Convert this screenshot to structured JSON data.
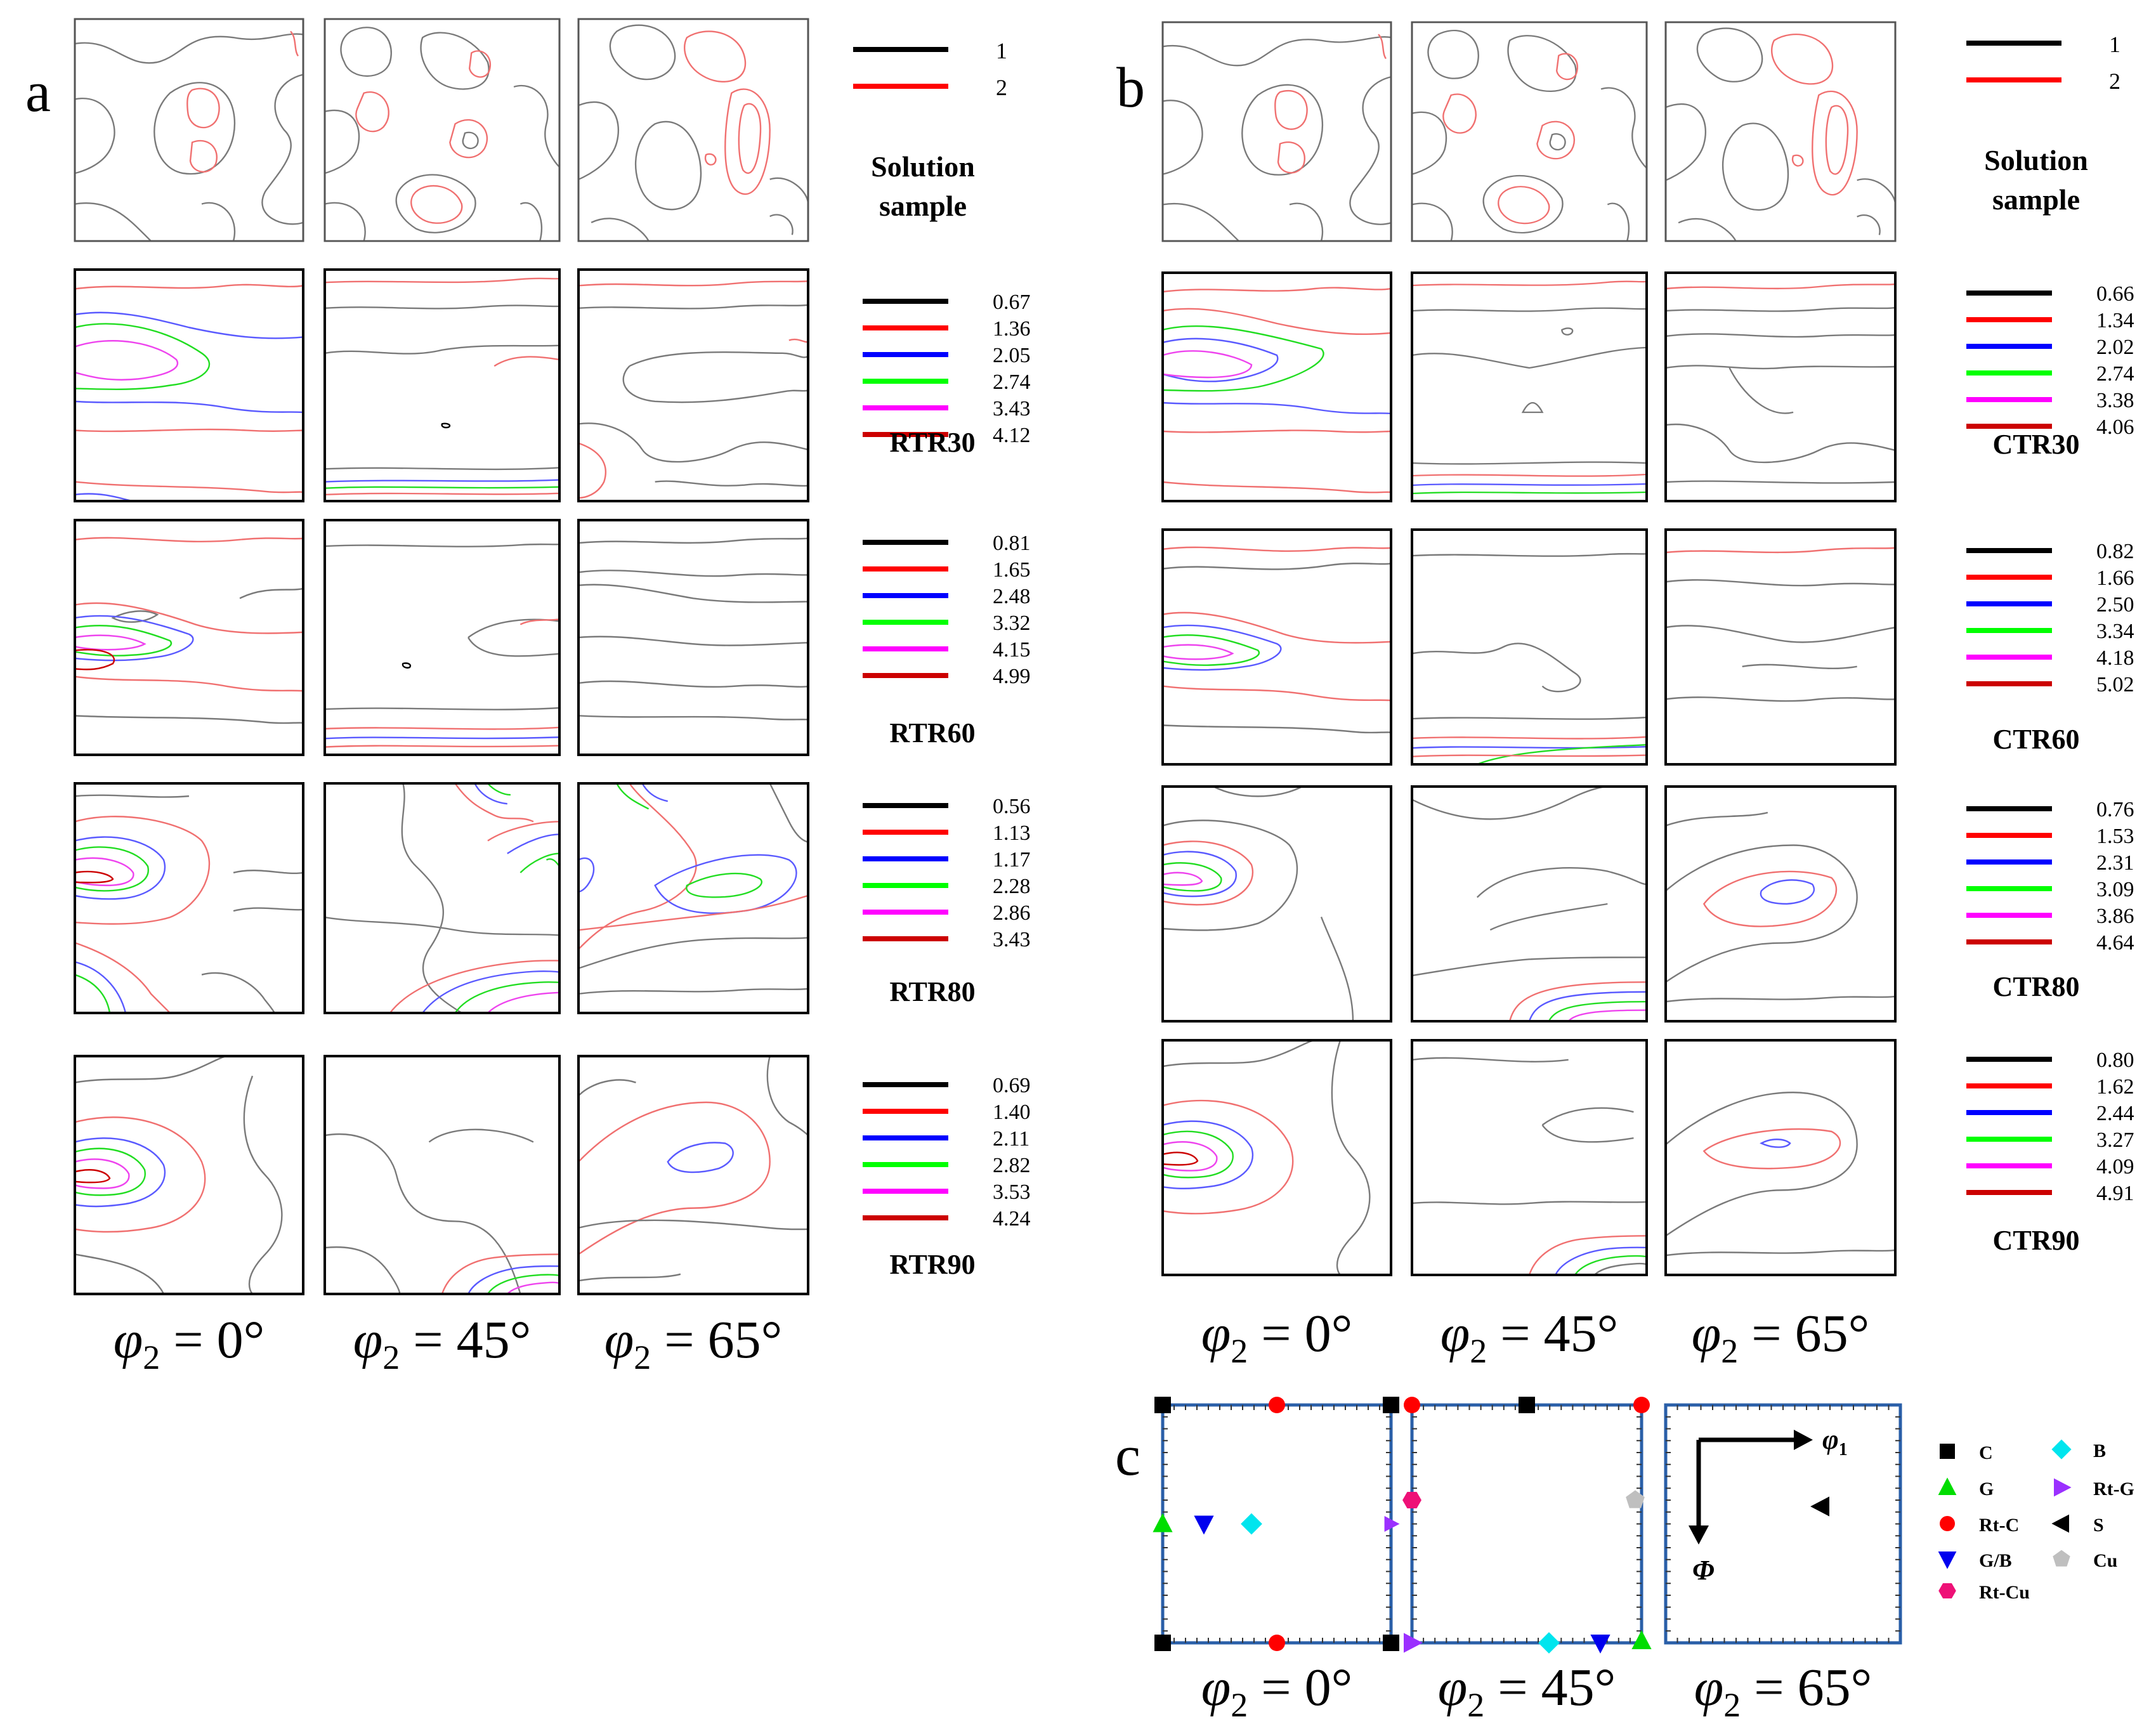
{
  "panel_labels": {
    "a": "a",
    "b": "b",
    "c": "c"
  },
  "columns": {
    "phi": "φ",
    "sub": "2",
    "eq": " = ",
    "angles": [
      "0°",
      "45°",
      "65°"
    ]
  },
  "solution": {
    "line1": "Solution",
    "line2": "sample",
    "levels": [
      "1",
      "2"
    ]
  },
  "colors": {
    "level1": "#000000",
    "level2": "#ff0000",
    "level3": "#0000ff",
    "level4": "#00ff00",
    "level5": "#ff00ff",
    "level6": "#cc0000",
    "contour_grey": "#7a7a7a",
    "contour_red": "#f07070",
    "frame_blue": "#2a5fa8"
  },
  "a_rows": [
    {
      "name": "RTR30",
      "levels": [
        "0.67",
        "1.36",
        "2.05",
        "2.74",
        "3.43",
        "4.12"
      ]
    },
    {
      "name": "RTR60",
      "levels": [
        "0.81",
        "1.65",
        "2.48",
        "3.32",
        "4.15",
        "4.99"
      ]
    },
    {
      "name": "RTR80",
      "levels": [
        "0.56",
        "1.13",
        "1.17",
        "2.28",
        "2.86",
        "3.43"
      ]
    },
    {
      "name": "RTR90",
      "levels": [
        "0.69",
        "1.40",
        "2.11",
        "2.82",
        "3.53",
        "4.24"
      ]
    }
  ],
  "b_rows": [
    {
      "name": "CTR30",
      "levels": [
        "0.66",
        "1.34",
        "2.02",
        "2.74",
        "3.38",
        "4.06"
      ]
    },
    {
      "name": "CTR60",
      "levels": [
        "0.82",
        "1.66",
        "2.50",
        "3.34",
        "4.18",
        "5.02"
      ]
    },
    {
      "name": "CTR80",
      "levels": [
        "0.76",
        "1.53",
        "2.31",
        "3.09",
        "3.86",
        "4.64"
      ]
    },
    {
      "name": "CTR90",
      "levels": [
        "0.80",
        "1.62",
        "2.44",
        "3.27",
        "4.09",
        "4.91"
      ]
    }
  ],
  "c_panel": {
    "axis_phi1": "φ",
    "axis_phi1_sub": "1",
    "axis_Phi": "Φ",
    "legend": [
      {
        "label": "C",
        "color": "#000000",
        "marker": "square"
      },
      {
        "label": "B",
        "color": "#00e5ee",
        "marker": "diamond"
      },
      {
        "label": "G",
        "color": "#00dd00",
        "marker": "triangle-up"
      },
      {
        "label": "Rt-G",
        "color": "#9b30ff",
        "marker": "triangle-right"
      },
      {
        "label": "Rt-C",
        "color": "#ff0000",
        "marker": "circle"
      },
      {
        "label": "S",
        "color": "#000000",
        "marker": "triangle-left"
      },
      {
        "label": "G/B",
        "color": "#0000ee",
        "marker": "triangle-down"
      },
      {
        "label": "Cu",
        "color": "#bfbfbf",
        "marker": "pentagon"
      },
      {
        "label": "Rt-Cu",
        "color": "#ee1177",
        "marker": "hexagon"
      }
    ]
  }
}
